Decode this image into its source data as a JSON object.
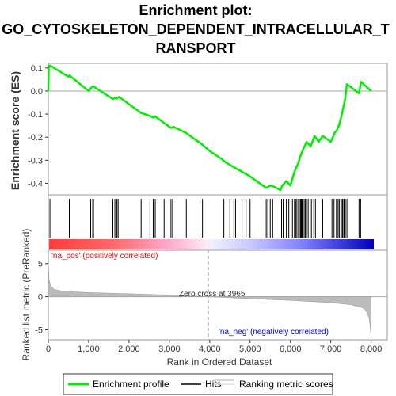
{
  "chart_data": {
    "type": "line",
    "title_lines": [
      "Enrichment plot:",
      "GO_CYTOSKELETON_DEPENDENT_INTRACELLULAR_T",
      "RANSPORT"
    ],
    "xlabel": "Rank in Ordered Dataset",
    "ylabel_top": "Enrichment score (ES)",
    "ylabel_bottom": "Ranked list metric (PreRanked)",
    "xlim": [
      0,
      8400
    ],
    "x_ticks": [
      0,
      1000,
      2000,
      3000,
      4000,
      5000,
      6000,
      7000,
      8000
    ],
    "x_tick_labels": [
      "0",
      "1,000",
      "2,000",
      "3,000",
      "4,000",
      "5,000",
      "6,000",
      "7,000",
      "8,000"
    ],
    "es_ylim": [
      -0.45,
      0.12
    ],
    "es_y_ticks": [
      0.1,
      0.0,
      -0.1,
      -0.2,
      -0.3,
      -0.4
    ],
    "es_y_tick_labels": [
      "0.1",
      "0.0",
      "-0.1",
      "-0.2",
      "-0.3",
      "-0.4"
    ],
    "metric_ylim": [
      -6.5,
      7
    ],
    "metric_y_ticks": [
      5,
      0,
      -5
    ],
    "metric_y_tick_labels": [
      "5",
      "0",
      "-5"
    ],
    "zero_cross": 3965,
    "zero_cross_label": "Zero cross at 3965",
    "pos_label": "'na_pos' (positively correlated)",
    "neg_label": "'na_neg' (negatively correlated)",
    "series": [
      {
        "name": "Enrichment profile",
        "x": [
          0,
          10,
          50,
          500,
          520,
          1000,
          1080,
          1120,
          1600,
          1650,
          1700,
          1750,
          2300,
          2550,
          2600,
          2650,
          3000,
          3050,
          3100,
          3400,
          3800,
          4000,
          4300,
          4400,
          4600,
          4800,
          5000,
          5400,
          5450,
          5500,
          5600,
          5700,
          5750,
          5800,
          5900,
          6000,
          6050,
          6100,
          6150,
          6200,
          6250,
          6300,
          6350,
          6400,
          6500,
          6600,
          6700,
          6800,
          7000,
          7050,
          7100,
          7150,
          7200,
          7250,
          7300,
          7350,
          7400,
          7700,
          7750,
          8000
        ],
        "y": [
          0.0,
          0.11,
          0.11,
          0.062,
          0.068,
          0.0,
          0.018,
          0.02,
          -0.035,
          -0.03,
          -0.032,
          -0.025,
          -0.095,
          -0.11,
          -0.115,
          -0.11,
          -0.155,
          -0.16,
          -0.155,
          -0.18,
          -0.23,
          -0.26,
          -0.295,
          -0.31,
          -0.33,
          -0.35,
          -0.37,
          -0.42,
          -0.415,
          -0.41,
          -0.415,
          -0.425,
          -0.43,
          -0.41,
          -0.39,
          -0.41,
          -0.38,
          -0.35,
          -0.33,
          -0.31,
          -0.28,
          -0.26,
          -0.24,
          -0.22,
          -0.24,
          -0.195,
          -0.22,
          -0.195,
          -0.22,
          -0.2,
          -0.18,
          -0.17,
          -0.15,
          -0.12,
          -0.08,
          -0.04,
          0.03,
          -0.01,
          0.04,
          0.0
        ]
      }
    ],
    "hits": [
      40,
      520,
      1050,
      1100,
      1120,
      1600,
      1650,
      1700,
      1730,
      2300,
      2520,
      2600,
      2650,
      2870,
      3040,
      3080,
      3420,
      3820,
      4350,
      4500,
      4600,
      4640,
      4800,
      4900,
      5000,
      5400,
      5440,
      5500,
      5560,
      5780,
      5820,
      5900,
      5960,
      6050,
      6100,
      6130,
      6160,
      6200,
      6220,
      6250,
      6270,
      6290,
      6310,
      6340,
      6370,
      6400,
      6440,
      6520,
      6580,
      6620,
      6800,
      7030,
      7080,
      7140,
      7180,
      7210,
      7250,
      7280,
      7300,
      7330,
      7360,
      7400,
      7700,
      7740
    ],
    "metric_curve": {
      "x": [
        0,
        20,
        60,
        150,
        300,
        600,
        1000,
        2000,
        3000,
        3965,
        5000,
        6000,
        7000,
        7500,
        7800,
        7900,
        7950,
        7980,
        8000
      ],
      "y": [
        5.2,
        2.6,
        1.6,
        1.1,
        0.9,
        0.75,
        0.62,
        0.45,
        0.25,
        0.0,
        -0.3,
        -0.55,
        -0.9,
        -1.2,
        -1.7,
        -2.4,
        -3.3,
        -4.8,
        -6.3
      ]
    },
    "colors": {
      "es_line": "#00ee00",
      "hit": "#000000",
      "metric_fill": "#bbbbbb",
      "pos_text": "#ff0000",
      "neg_text": "#0000ff",
      "bar_red": "#ff0000",
      "bar_blue": "#0000ff"
    }
  },
  "legend": {
    "items": [
      {
        "label": "Enrichment profile",
        "color": "#00ee00"
      },
      {
        "label": "Hits",
        "color": "#000000"
      },
      {
        "label": "Ranking metric scores",
        "color": "#bbbbbb"
      }
    ]
  }
}
